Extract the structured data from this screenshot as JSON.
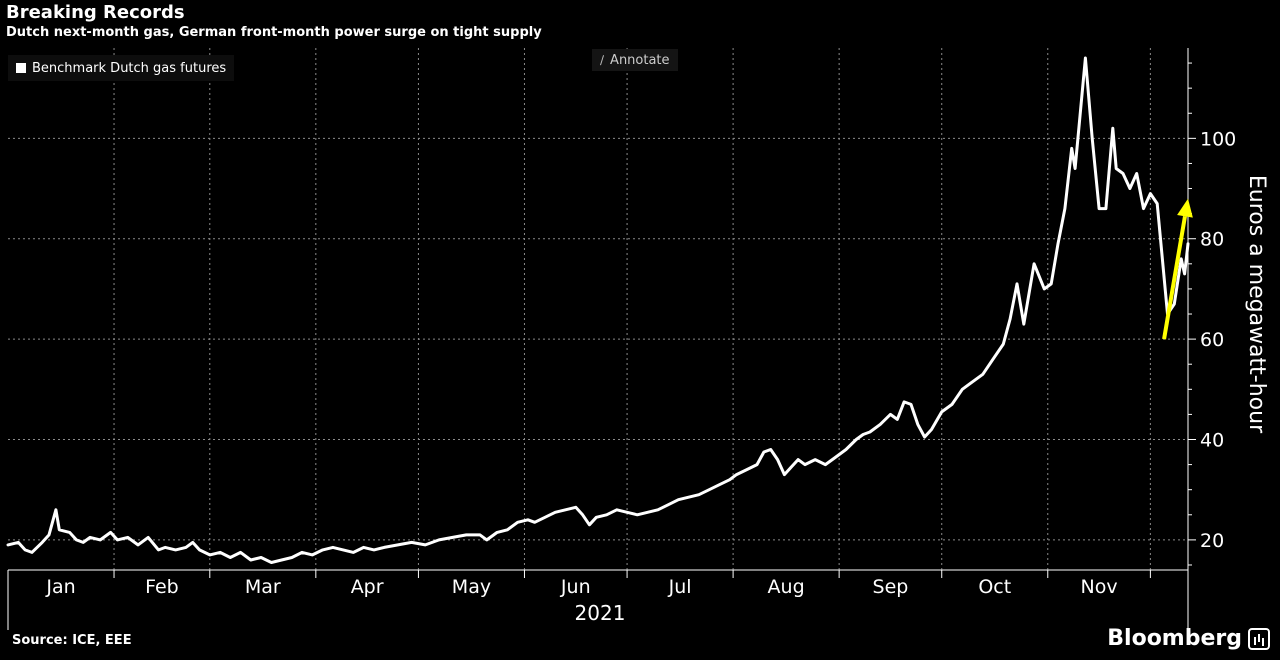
{
  "chart_data": {
    "type": "line",
    "title": "Breaking Records",
    "subtitle": "Dutch next-month gas, German front-month power surge on tight supply",
    "ylabel": "Euros a megawatt-hour",
    "xlabel": "2021",
    "ylim": [
      14,
      118
    ],
    "y_ticks": [
      20,
      40,
      60,
      80,
      100
    ],
    "x_ticks": [
      "Jan",
      "Feb",
      "Mar",
      "Apr",
      "May",
      "Jun",
      "Jul",
      "Aug",
      "Sep",
      "Oct",
      "Nov"
    ],
    "x_axis_start": "2021-01-01",
    "x_axis_end": "2021-12-12",
    "grid": true,
    "legend_position": "top-left",
    "series": [
      {
        "name": "Benchmark Dutch gas futures",
        "color": "#ffffff",
        "points": [
          [
            "2021-01-01",
            19.0
          ],
          [
            "2021-01-04",
            19.5
          ],
          [
            "2021-01-06",
            18.0
          ],
          [
            "2021-01-08",
            17.5
          ],
          [
            "2021-01-11",
            19.5
          ],
          [
            "2021-01-13",
            21.0
          ],
          [
            "2021-01-15",
            26.0
          ],
          [
            "2021-01-16",
            22.0
          ],
          [
            "2021-01-19",
            21.5
          ],
          [
            "2021-01-21",
            20.0
          ],
          [
            "2021-01-23",
            19.5
          ],
          [
            "2021-01-25",
            20.5
          ],
          [
            "2021-01-28",
            20.0
          ],
          [
            "2021-01-31",
            21.5
          ],
          [
            "2021-02-02",
            20.0
          ],
          [
            "2021-02-05",
            20.5
          ],
          [
            "2021-02-08",
            19.0
          ],
          [
            "2021-02-11",
            20.5
          ],
          [
            "2021-02-14",
            18.0
          ],
          [
            "2021-02-16",
            18.5
          ],
          [
            "2021-02-19",
            18.0
          ],
          [
            "2021-02-22",
            18.5
          ],
          [
            "2021-02-24",
            19.5
          ],
          [
            "2021-02-26",
            18.0
          ],
          [
            "2021-03-01",
            17.0
          ],
          [
            "2021-03-04",
            17.5
          ],
          [
            "2021-03-07",
            16.5
          ],
          [
            "2021-03-10",
            17.5
          ],
          [
            "2021-03-13",
            16.0
          ],
          [
            "2021-03-16",
            16.5
          ],
          [
            "2021-03-19",
            15.5
          ],
          [
            "2021-03-22",
            16.0
          ],
          [
            "2021-03-25",
            16.5
          ],
          [
            "2021-03-28",
            17.5
          ],
          [
            "2021-03-31",
            17.0
          ],
          [
            "2021-04-03",
            18.0
          ],
          [
            "2021-04-06",
            18.5
          ],
          [
            "2021-04-09",
            18.0
          ],
          [
            "2021-04-12",
            17.5
          ],
          [
            "2021-04-15",
            18.5
          ],
          [
            "2021-04-18",
            18.0
          ],
          [
            "2021-04-21",
            18.5
          ],
          [
            "2021-04-25",
            19.0
          ],
          [
            "2021-04-29",
            19.5
          ],
          [
            "2021-05-03",
            19.0
          ],
          [
            "2021-05-07",
            20.0
          ],
          [
            "2021-05-11",
            20.5
          ],
          [
            "2021-05-15",
            21.0
          ],
          [
            "2021-05-19",
            21.0
          ],
          [
            "2021-05-21",
            20.0
          ],
          [
            "2021-05-24",
            21.5
          ],
          [
            "2021-05-27",
            22.0
          ],
          [
            "2021-05-30",
            23.5
          ],
          [
            "2021-06-02",
            24.0
          ],
          [
            "2021-06-04",
            23.5
          ],
          [
            "2021-06-07",
            24.5
          ],
          [
            "2021-06-10",
            25.5
          ],
          [
            "2021-06-13",
            26.0
          ],
          [
            "2021-06-16",
            26.5
          ],
          [
            "2021-06-18",
            25.0
          ],
          [
            "2021-06-20",
            23.0
          ],
          [
            "2021-06-22",
            24.5
          ],
          [
            "2021-06-25",
            25.0
          ],
          [
            "2021-06-28",
            26.0
          ],
          [
            "2021-07-01",
            25.5
          ],
          [
            "2021-07-04",
            25.0
          ],
          [
            "2021-07-07",
            25.5
          ],
          [
            "2021-07-10",
            26.0
          ],
          [
            "2021-07-13",
            27.0
          ],
          [
            "2021-07-16",
            28.0
          ],
          [
            "2021-07-19",
            28.5
          ],
          [
            "2021-07-22",
            29.0
          ],
          [
            "2021-07-25",
            30.0
          ],
          [
            "2021-07-28",
            31.0
          ],
          [
            "2021-07-31",
            32.0
          ],
          [
            "2021-08-02",
            33.0
          ],
          [
            "2021-08-05",
            34.0
          ],
          [
            "2021-08-08",
            35.0
          ],
          [
            "2021-08-10",
            37.5
          ],
          [
            "2021-08-12",
            38.0
          ],
          [
            "2021-08-14",
            36.0
          ],
          [
            "2021-08-16",
            33.0
          ],
          [
            "2021-08-18",
            34.5
          ],
          [
            "2021-08-20",
            36.0
          ],
          [
            "2021-08-22",
            35.0
          ],
          [
            "2021-08-25",
            36.0
          ],
          [
            "2021-08-28",
            35.0
          ],
          [
            "2021-08-31",
            36.5
          ],
          [
            "2021-09-03",
            38.0
          ],
          [
            "2021-09-06",
            40.0
          ],
          [
            "2021-09-08",
            41.0
          ],
          [
            "2021-09-10",
            41.5
          ],
          [
            "2021-09-13",
            43.0
          ],
          [
            "2021-09-16",
            45.0
          ],
          [
            "2021-09-18",
            44.0
          ],
          [
            "2021-09-20",
            47.5
          ],
          [
            "2021-09-22",
            47.0
          ],
          [
            "2021-09-24",
            43.0
          ],
          [
            "2021-09-26",
            40.5
          ],
          [
            "2021-09-28",
            42.0
          ],
          [
            "2021-10-01",
            45.5
          ],
          [
            "2021-10-04",
            47.0
          ],
          [
            "2021-10-07",
            50.0
          ],
          [
            "2021-10-10",
            51.5
          ],
          [
            "2021-10-13",
            53.0
          ],
          [
            "2021-10-16",
            56.0
          ],
          [
            "2021-10-19",
            59.0
          ],
          [
            "2021-10-21",
            64.0
          ],
          [
            "2021-10-23",
            71.0
          ],
          [
            "2021-10-25",
            63.0
          ],
          [
            "2021-10-28",
            75.0
          ],
          [
            "2021-10-31",
            70.0
          ],
          [
            "2021-11-02",
            71.0
          ],
          [
            "2021-11-04",
            79.0
          ],
          [
            "2021-11-06",
            86.0
          ],
          [
            "2021-11-08",
            98.0
          ],
          [
            "2021-11-09",
            94.0
          ],
          [
            "2021-11-12",
            116.0
          ],
          [
            "2021-11-14",
            100.0
          ],
          [
            "2021-11-16",
            86.0
          ],
          [
            "2021-11-18",
            86.0
          ],
          [
            "2021-11-20",
            102.0
          ],
          [
            "2021-11-21",
            94.0
          ],
          [
            "2021-11-23",
            93.0
          ],
          [
            "2021-11-25",
            90.0
          ],
          [
            "2021-11-27",
            93.0
          ],
          [
            "2021-11-29",
            86.0
          ],
          [
            "2021-12-01",
            89.0
          ],
          [
            "2021-12-03",
            87.0
          ],
          [
            "2021-12-06",
            65.0
          ],
          [
            "2021-12-08",
            67.0
          ],
          [
            "2021-12-10",
            76.0
          ],
          [
            "2021-12-11",
            73.0
          ],
          [
            "2021-12-12",
            79.0
          ]
        ]
      }
    ],
    "arrow_annotation": {
      "color": "#ffff00",
      "from_x": "2021-12-05",
      "from_y": 60,
      "to_x": "2021-12-12",
      "to_y": 88
    }
  },
  "legend": {
    "label": "Benchmark Dutch gas futures"
  },
  "toolbar": {
    "annotate_label": "Annotate"
  },
  "footer": {
    "source": "Source: ICE, EEE",
    "brand": "Bloomberg"
  }
}
